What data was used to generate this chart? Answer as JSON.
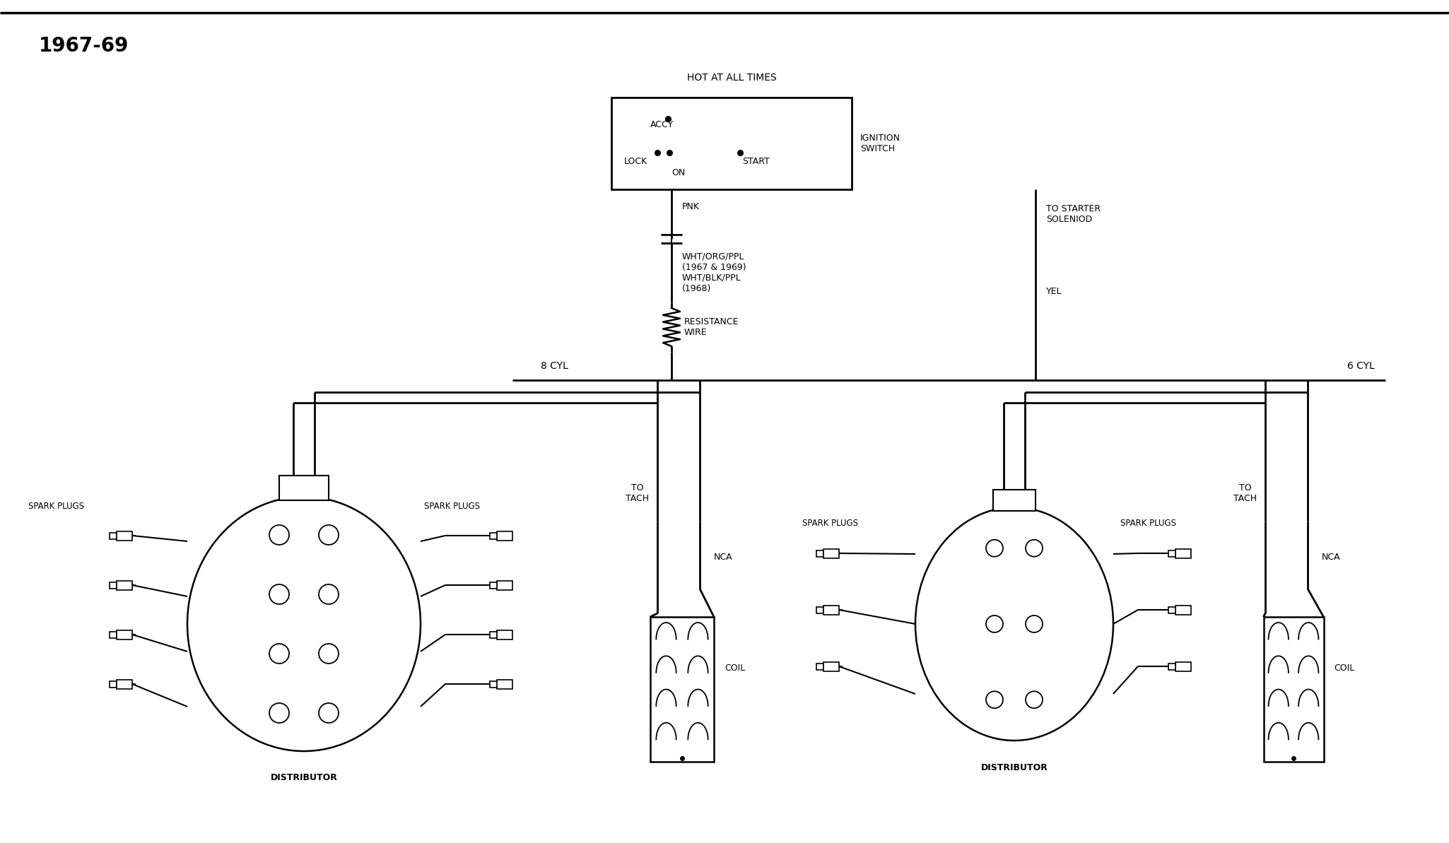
{
  "title": "1967-69",
  "bg_color": "#ffffff",
  "line_color": "#000000",
  "figsize": [
    20.5,
    11.93
  ],
  "dpi": 100,
  "labels": {
    "hot_at_all_times": "HOT AT ALL TIMES",
    "ignition_switch": "IGNITION\nSWITCH",
    "accy": "ACCY",
    "lock": "LOCK",
    "on": "ON",
    "start": "START",
    "pnk": "PNK",
    "yel": "YEL",
    "to_starter": "TO STARTER\nSOLENIOD",
    "wht_org_ppl": "WHT/ORG/PPL\n(1967 & 1969)\nWHT/BLK/PPL\n(1968)",
    "resistance_wire": "RESISTANCE\nWIRE",
    "8cyl": "8 CYL",
    "6cyl": "6 CYL",
    "to_tach": "TO\nTACH",
    "nca": "NCA",
    "coil": "COIL",
    "distributor": "DISTRIBUTOR",
    "spark_plugs": "SPARK PLUGS"
  },
  "title_fontsize": 20,
  "label_fontsize": 9,
  "small_fontsize": 8
}
